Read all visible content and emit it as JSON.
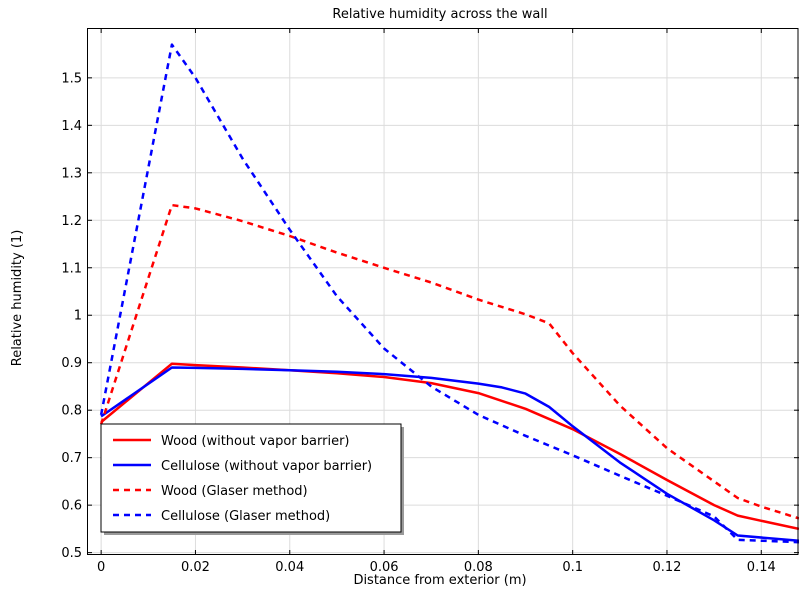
{
  "chart_data": {
    "type": "line",
    "title": "Relative humidity across the wall",
    "xlabel": "Distance from exterior (m)",
    "ylabel": "Relative humidity (1)",
    "xlim": [
      -0.003,
      0.148
    ],
    "ylim": [
      0.495,
      1.605
    ],
    "xticks": [
      0,
      0.02,
      0.04,
      0.06,
      0.08,
      0.1,
      0.12,
      0.14
    ],
    "xtick_labels": [
      "0",
      "0.02",
      "0.04",
      "0.06",
      "0.08",
      "0.1",
      "0.12",
      "0.14"
    ],
    "yticks": [
      0.5,
      0.6,
      0.7,
      0.8,
      0.9,
      1.0,
      1.1,
      1.2,
      1.3,
      1.4,
      1.5
    ],
    "ytick_labels": [
      "0.5",
      "0.6",
      "0.7",
      "0.8",
      "0.9",
      "1",
      "1.1",
      "1.2",
      "1.3",
      "1.4",
      "1.5"
    ],
    "grid": true,
    "legend_position": "bottom-left",
    "series": [
      {
        "name": "Wood (without vapor barrier)",
        "color": "#ff0000",
        "style": "solid",
        "points": [
          [
            0,
            0.775
          ],
          [
            0.015,
            0.898
          ],
          [
            0.02,
            0.895
          ],
          [
            0.03,
            0.89
          ],
          [
            0.04,
            0.884
          ],
          [
            0.05,
            0.878
          ],
          [
            0.06,
            0.87
          ],
          [
            0.07,
            0.857
          ],
          [
            0.08,
            0.836
          ],
          [
            0.09,
            0.803
          ],
          [
            0.1,
            0.76
          ],
          [
            0.11,
            0.708
          ],
          [
            0.12,
            0.653
          ],
          [
            0.13,
            0.6
          ],
          [
            0.135,
            0.578
          ],
          [
            0.14,
            0.567
          ],
          [
            0.148,
            0.55
          ]
        ]
      },
      {
        "name": "Cellulose (without vapor barrier)",
        "color": "#0000ff",
        "style": "solid",
        "points": [
          [
            0,
            0.787
          ],
          [
            0.015,
            0.89
          ],
          [
            0.02,
            0.889
          ],
          [
            0.03,
            0.887
          ],
          [
            0.04,
            0.884
          ],
          [
            0.05,
            0.881
          ],
          [
            0.06,
            0.876
          ],
          [
            0.07,
            0.868
          ],
          [
            0.08,
            0.856
          ],
          [
            0.085,
            0.848
          ],
          [
            0.09,
            0.835
          ],
          [
            0.095,
            0.807
          ],
          [
            0.1,
            0.766
          ],
          [
            0.11,
            0.69
          ],
          [
            0.12,
            0.624
          ],
          [
            0.13,
            0.568
          ],
          [
            0.135,
            0.536
          ],
          [
            0.148,
            0.525
          ]
        ]
      },
      {
        "name": "Wood (Glaser method)",
        "color": "#ff0000",
        "style": "dashed",
        "points": [
          [
            0,
            0.77
          ],
          [
            0.015,
            1.232
          ],
          [
            0.02,
            1.225
          ],
          [
            0.03,
            1.198
          ],
          [
            0.04,
            1.167
          ],
          [
            0.05,
            1.132
          ],
          [
            0.06,
            1.1
          ],
          [
            0.07,
            1.069
          ],
          [
            0.08,
            1.033
          ],
          [
            0.09,
            1.002
          ],
          [
            0.095,
            0.983
          ],
          [
            0.1,
            0.92
          ],
          [
            0.11,
            0.81
          ],
          [
            0.12,
            0.72
          ],
          [
            0.13,
            0.65
          ],
          [
            0.135,
            0.615
          ],
          [
            0.14,
            0.597
          ],
          [
            0.148,
            0.572
          ]
        ]
      },
      {
        "name": "Cellulose (Glaser method)",
        "color": "#0000ff",
        "style": "dashed",
        "points": [
          [
            0,
            0.79
          ],
          [
            0.015,
            1.57
          ],
          [
            0.02,
            1.5
          ],
          [
            0.03,
            1.33
          ],
          [
            0.04,
            1.18
          ],
          [
            0.05,
            1.04
          ],
          [
            0.06,
            0.93
          ],
          [
            0.07,
            0.85
          ],
          [
            0.08,
            0.79
          ],
          [
            0.09,
            0.746
          ],
          [
            0.1,
            0.705
          ],
          [
            0.11,
            0.662
          ],
          [
            0.12,
            0.62
          ],
          [
            0.13,
            0.576
          ],
          [
            0.135,
            0.527
          ],
          [
            0.148,
            0.522
          ]
        ]
      }
    ]
  }
}
